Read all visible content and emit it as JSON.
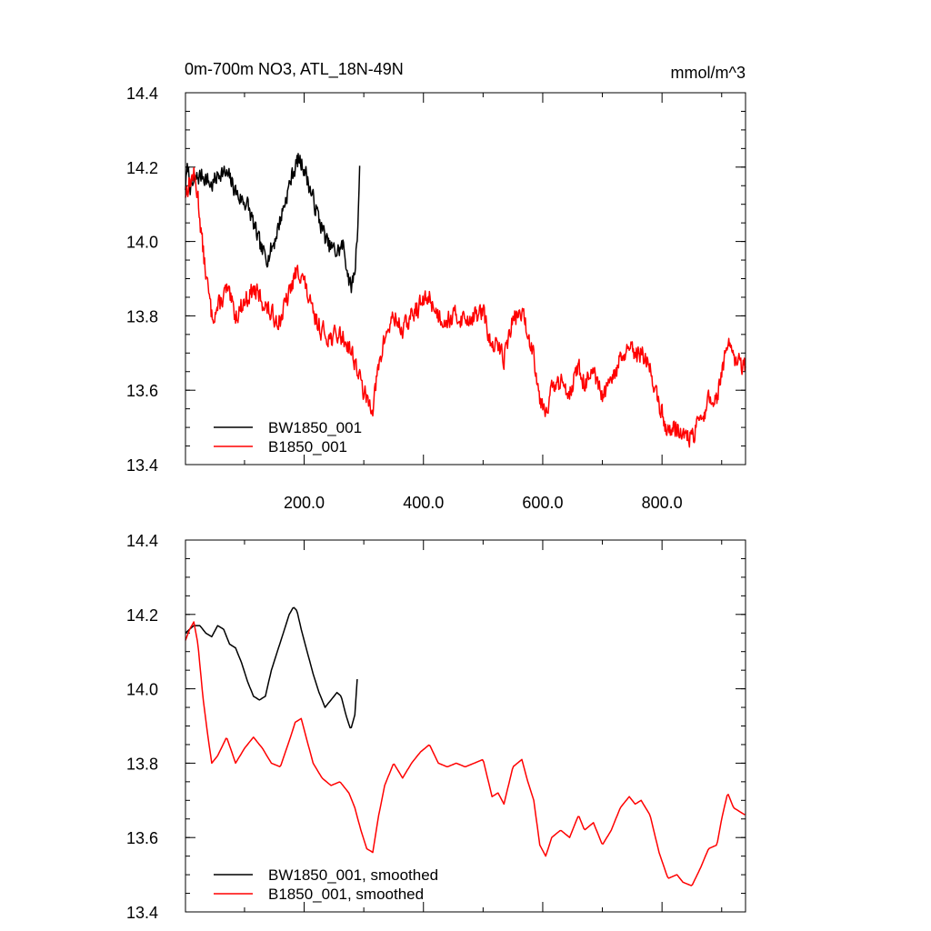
{
  "chart_data": [
    {
      "type": "line",
      "title": "0m-700m NO3, ATL_18N-49N",
      "units": "mmol/m^3",
      "xlabel": "",
      "ylabel": "",
      "xlim": [
        1,
        940
      ],
      "ylim": [
        13.4,
        14.4
      ],
      "xticks": [
        200,
        400,
        600,
        800
      ],
      "xtick_labels": [
        "200.0",
        "400.0",
        "600.0",
        "800.0"
      ],
      "yticks": [
        13.4,
        13.6,
        13.8,
        14.0,
        14.2,
        14.4
      ],
      "ytick_labels": [
        "13.4",
        "13.6",
        "13.8",
        "14.0",
        "14.2",
        "14.4"
      ],
      "grid": false,
      "legend": "bottom-left",
      "series": [
        {
          "name": "BW1850_001",
          "color": "#000000",
          "noise": 0.022,
          "seed": 7,
          "x": [
            1,
            5,
            10,
            20,
            30,
            45,
            60,
            75,
            90,
            105,
            120,
            130,
            140,
            150,
            160,
            170,
            180,
            190,
            200,
            210,
            225,
            240,
            255,
            265,
            272,
            278,
            285,
            290,
            293
          ],
          "y": [
            14.15,
            14.2,
            14.14,
            14.17,
            14.18,
            14.15,
            14.19,
            14.17,
            14.12,
            14.1,
            14.02,
            13.97,
            13.96,
            14.0,
            14.06,
            14.12,
            14.18,
            14.22,
            14.2,
            14.14,
            14.06,
            13.99,
            13.97,
            13.99,
            13.93,
            13.87,
            13.92,
            14.05,
            14.19
          ]
        },
        {
          "name": "B1850_001",
          "color": "#ff0000",
          "noise": 0.024,
          "seed": 13,
          "x": [
            1,
            8,
            15,
            22,
            30,
            38,
            45,
            55,
            70,
            85,
            100,
            115,
            130,
            145,
            160,
            175,
            185,
            195,
            205,
            215,
            230,
            245,
            260,
            275,
            285,
            295,
            305,
            315,
            325,
            335,
            350,
            365,
            380,
            395,
            410,
            425,
            440,
            455,
            470,
            485,
            500,
            515,
            525,
            535,
            550,
            565,
            575,
            585,
            595,
            605,
            615,
            630,
            645,
            660,
            670,
            685,
            700,
            715,
            730,
            745,
            755,
            765,
            780,
            795,
            810,
            825,
            835,
            850,
            865,
            878,
            892,
            900,
            910,
            920,
            930,
            940
          ],
          "y": [
            14.13,
            14.16,
            14.18,
            14.12,
            13.98,
            13.88,
            13.8,
            13.82,
            13.87,
            13.8,
            13.84,
            13.87,
            13.84,
            13.8,
            13.79,
            13.86,
            13.91,
            13.92,
            13.86,
            13.8,
            13.76,
            13.74,
            13.75,
            13.72,
            13.68,
            13.62,
            13.57,
            13.56,
            13.66,
            13.74,
            13.8,
            13.76,
            13.8,
            13.83,
            13.85,
            13.8,
            13.79,
            13.8,
            13.79,
            13.8,
            13.81,
            13.71,
            13.72,
            13.69,
            13.79,
            13.81,
            13.75,
            13.7,
            13.58,
            13.55,
            13.6,
            13.62,
            13.6,
            13.66,
            13.62,
            13.64,
            13.58,
            13.62,
            13.68,
            13.71,
            13.69,
            13.7,
            13.66,
            13.56,
            13.49,
            13.5,
            13.48,
            13.47,
            13.52,
            13.57,
            13.58,
            13.65,
            13.72,
            13.68,
            13.67,
            13.66
          ]
        }
      ]
    },
    {
      "type": "line",
      "title": "",
      "xlabel": "",
      "ylabel": "",
      "xlim": [
        1,
        940
      ],
      "ylim": [
        13.4,
        14.4
      ],
      "xticks": [
        200,
        400,
        600,
        800
      ],
      "xtick_labels": [],
      "yticks": [
        13.4,
        13.6,
        13.8,
        14.0,
        14.2,
        14.4
      ],
      "ytick_labels": [
        "13.4",
        "13.6",
        "13.8",
        "14.0",
        "14.2",
        "14.4"
      ],
      "grid": false,
      "legend": "bottom-left",
      "series": [
        {
          "name": "BW1850_001, smoothed",
          "color": "#000000",
          "x": [
            1,
            8,
            15,
            25,
            35,
            45,
            55,
            65,
            75,
            85,
            95,
            105,
            115,
            125,
            135,
            145,
            155,
            165,
            175,
            182,
            188,
            195,
            205,
            215,
            225,
            235,
            245,
            255,
            262,
            270,
            278,
            285,
            290
          ],
          "y": [
            14.15,
            14.16,
            14.17,
            14.17,
            14.15,
            14.14,
            14.17,
            14.16,
            14.12,
            14.11,
            14.07,
            14.02,
            13.98,
            13.97,
            13.98,
            14.05,
            14.1,
            14.15,
            14.2,
            14.22,
            14.21,
            14.16,
            14.1,
            14.04,
            13.99,
            13.95,
            13.97,
            13.99,
            13.98,
            13.93,
            13.89,
            13.93,
            14.05
          ]
        },
        {
          "name": "B1850_001, smoothed",
          "color": "#ff0000",
          "x": [
            1,
            8,
            15,
            22,
            30,
            38,
            45,
            55,
            70,
            85,
            100,
            115,
            130,
            145,
            160,
            175,
            185,
            195,
            205,
            215,
            230,
            245,
            260,
            275,
            285,
            295,
            305,
            315,
            325,
            335,
            350,
            365,
            380,
            395,
            410,
            425,
            440,
            455,
            470,
            485,
            500,
            515,
            525,
            535,
            550,
            565,
            575,
            585,
            595,
            605,
            615,
            630,
            645,
            660,
            670,
            685,
            700,
            715,
            730,
            745,
            755,
            765,
            780,
            795,
            810,
            825,
            835,
            850,
            865,
            878,
            892,
            900,
            910,
            920,
            930,
            940
          ],
          "y": [
            14.13,
            14.16,
            14.18,
            14.12,
            13.98,
            13.88,
            13.8,
            13.82,
            13.87,
            13.8,
            13.84,
            13.87,
            13.84,
            13.8,
            13.79,
            13.86,
            13.91,
            13.92,
            13.86,
            13.8,
            13.76,
            13.74,
            13.75,
            13.72,
            13.68,
            13.62,
            13.57,
            13.56,
            13.66,
            13.74,
            13.8,
            13.76,
            13.8,
            13.83,
            13.85,
            13.8,
            13.79,
            13.8,
            13.79,
            13.8,
            13.81,
            13.71,
            13.72,
            13.69,
            13.79,
            13.81,
            13.75,
            13.7,
            13.58,
            13.55,
            13.6,
            13.62,
            13.6,
            13.66,
            13.62,
            13.64,
            13.58,
            13.62,
            13.68,
            13.71,
            13.69,
            13.7,
            13.66,
            13.56,
            13.49,
            13.5,
            13.48,
            13.47,
            13.52,
            13.57,
            13.58,
            13.65,
            13.72,
            13.68,
            13.67,
            13.66
          ]
        }
      ]
    }
  ]
}
